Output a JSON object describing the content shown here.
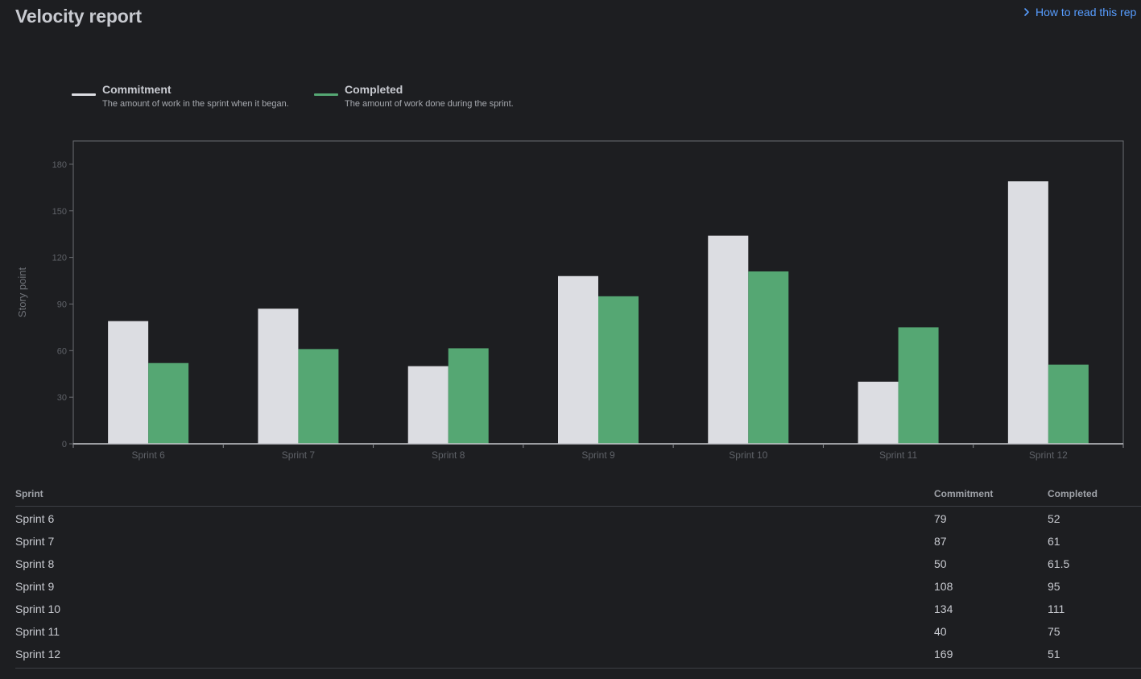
{
  "header": {
    "title": "Velocity report",
    "help_link": "How to read this rep"
  },
  "legend": [
    {
      "label": "Commitment",
      "description": "The amount of work in the sprint when it began.",
      "color": "#dcdde2"
    },
    {
      "label": "Completed",
      "description": "The amount of work done during the sprint.",
      "color": "#55a773"
    }
  ],
  "chart_data": {
    "type": "bar",
    "title": "",
    "xlabel": "",
    "ylabel": "Story point",
    "ylim": [
      0,
      195
    ],
    "yticks": [
      0,
      30,
      60,
      90,
      120,
      150,
      180
    ],
    "categories": [
      "Sprint 6",
      "Sprint 7",
      "Sprint 8",
      "Sprint 9",
      "Sprint 10",
      "Sprint 11",
      "Sprint 12"
    ],
    "series": [
      {
        "name": "Commitment",
        "color": "#dcdde2",
        "values": [
          79,
          87,
          50,
          108,
          134,
          40,
          169
        ]
      },
      {
        "name": "Completed",
        "color": "#55a773",
        "values": [
          52,
          61,
          61.5,
          95,
          111,
          75,
          51
        ]
      }
    ],
    "grid": false,
    "legend_position": "top-left"
  },
  "table": {
    "headers": {
      "sprint": "Sprint",
      "commitment": "Commitment",
      "completed": "Completed"
    },
    "rows": [
      {
        "sprint": "Sprint 6",
        "commitment": "79",
        "completed": "52"
      },
      {
        "sprint": "Sprint 7",
        "commitment": "87",
        "completed": "61"
      },
      {
        "sprint": "Sprint 8",
        "commitment": "50",
        "completed": "61.5"
      },
      {
        "sprint": "Sprint 9",
        "commitment": "108",
        "completed": "95"
      },
      {
        "sprint": "Sprint 10",
        "commitment": "134",
        "completed": "111"
      },
      {
        "sprint": "Sprint 11",
        "commitment": "40",
        "completed": "75"
      },
      {
        "sprint": "Sprint 12",
        "commitment": "169",
        "completed": "51"
      }
    ]
  }
}
